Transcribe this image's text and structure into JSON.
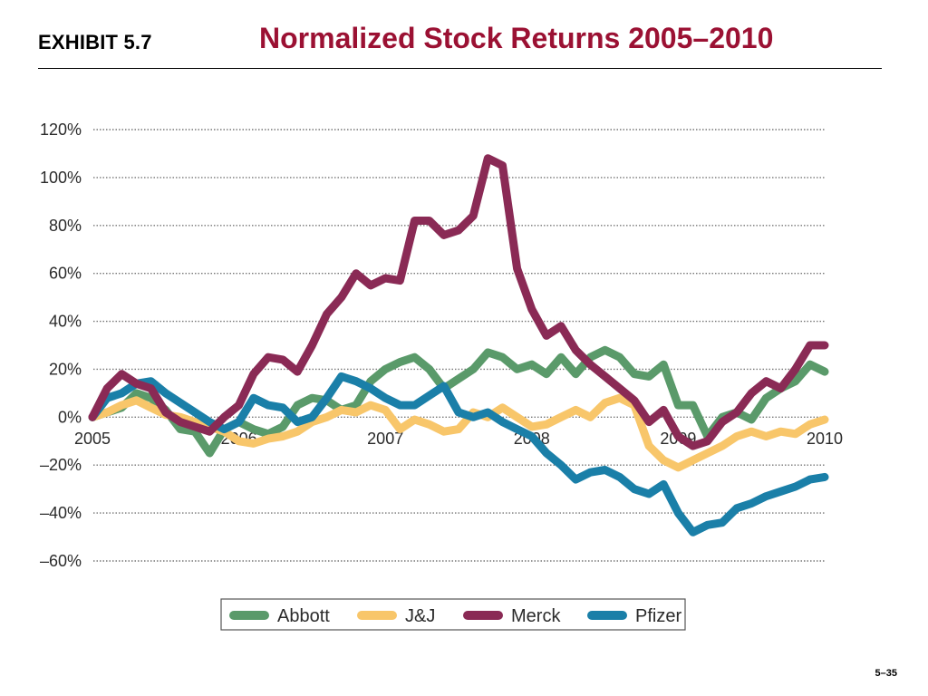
{
  "header": {
    "exhibit": "EXHIBIT 5.7",
    "title": "Normalized Stock Returns 2005–2010"
  },
  "footer": {
    "page": "5–35"
  },
  "chart_data": {
    "type": "line",
    "title": "Normalized Stock Returns 2005–2010",
    "xlabel": "",
    "ylabel": "",
    "xlim": [
      2005,
      2010
    ],
    "ylim": [
      -60,
      120
    ],
    "x_ticks": [
      "2005",
      "2006",
      "2007",
      "2008",
      "2009",
      "2010"
    ],
    "y_ticks": [
      "120%",
      "100%",
      "80%",
      "60%",
      "40%",
      "20%",
      "0%",
      "–20%",
      "–40%",
      "–60%"
    ],
    "grid": "horizontal dotted",
    "legend_position": "bottom",
    "series": [
      {
        "name": "Abbott",
        "color": "#5a9a6a",
        "x": [
          2005.0,
          2005.1,
          2005.2,
          2005.3,
          2005.4,
          2005.5,
          2005.6,
          2005.7,
          2005.8,
          2005.9,
          2006.0,
          2006.1,
          2006.2,
          2006.3,
          2006.4,
          2006.5,
          2006.6,
          2006.7,
          2006.8,
          2006.9,
          2007.0,
          2007.1,
          2007.2,
          2007.3,
          2007.4,
          2007.5,
          2007.6,
          2007.7,
          2007.8,
          2007.9,
          2008.0,
          2008.1,
          2008.2,
          2008.3,
          2008.4,
          2008.5,
          2008.6,
          2008.7,
          2008.8,
          2008.9,
          2009.0,
          2009.1,
          2009.2,
          2009.3,
          2009.4,
          2009.5,
          2009.6,
          2009.7,
          2009.8,
          2009.9,
          2010.0
        ],
        "values": [
          0,
          2,
          4,
          10,
          8,
          3,
          -5,
          -6,
          -15,
          -5,
          -2,
          -5,
          -7,
          -4,
          5,
          8,
          7,
          3,
          5,
          15,
          20,
          23,
          25,
          20,
          12,
          16,
          20,
          27,
          25,
          20,
          22,
          18,
          25,
          18,
          25,
          28,
          25,
          18,
          17,
          22,
          5,
          5,
          -8,
          0,
          2,
          -1,
          8,
          12,
          15,
          22,
          19
        ]
      },
      {
        "name": "J&J",
        "color": "#f8c66a",
        "x": [
          2005.0,
          2005.1,
          2005.2,
          2005.3,
          2005.4,
          2005.5,
          2005.6,
          2005.7,
          2005.8,
          2005.9,
          2006.0,
          2006.1,
          2006.2,
          2006.3,
          2006.4,
          2006.5,
          2006.6,
          2006.7,
          2006.8,
          2006.9,
          2007.0,
          2007.1,
          2007.2,
          2007.3,
          2007.4,
          2007.5,
          2007.6,
          2007.7,
          2007.8,
          2007.9,
          2008.0,
          2008.1,
          2008.2,
          2008.3,
          2008.4,
          2008.5,
          2008.6,
          2008.7,
          2008.8,
          2008.9,
          2009.0,
          2009.1,
          2009.2,
          2009.3,
          2009.4,
          2009.5,
          2009.6,
          2009.7,
          2009.8,
          2009.9,
          2010.0
        ],
        "values": [
          0,
          2,
          5,
          7,
          4,
          1,
          0,
          -2,
          -4,
          -6,
          -10,
          -11,
          -9,
          -8,
          -6,
          -2,
          0,
          3,
          2,
          5,
          3,
          -5,
          -1,
          -3,
          -6,
          -5,
          2,
          0,
          4,
          0,
          -4,
          -3,
          0,
          3,
          0,
          6,
          8,
          5,
          -12,
          -18,
          -21,
          -18,
          -15,
          -12,
          -8,
          -6,
          -8,
          -6,
          -7,
          -3,
          -1
        ]
      },
      {
        "name": "Merck",
        "color": "#8a2a55",
        "x": [
          2005.0,
          2005.1,
          2005.2,
          2005.3,
          2005.4,
          2005.5,
          2005.6,
          2005.7,
          2005.8,
          2005.9,
          2006.0,
          2006.1,
          2006.2,
          2006.3,
          2006.4,
          2006.5,
          2006.6,
          2006.7,
          2006.8,
          2006.9,
          2007.0,
          2007.1,
          2007.2,
          2007.3,
          2007.4,
          2007.5,
          2007.6,
          2007.7,
          2007.8,
          2007.9,
          2008.0,
          2008.1,
          2008.2,
          2008.3,
          2008.4,
          2008.5,
          2008.6,
          2008.7,
          2008.8,
          2008.9,
          2009.0,
          2009.1,
          2009.2,
          2009.3,
          2009.4,
          2009.5,
          2009.6,
          2009.7,
          2009.8,
          2009.9,
          2010.0
        ],
        "values": [
          0,
          12,
          18,
          14,
          12,
          2,
          -2,
          -4,
          -6,
          0,
          5,
          18,
          25,
          24,
          19,
          30,
          43,
          50,
          60,
          55,
          58,
          57,
          82,
          82,
          76,
          78,
          84,
          108,
          105,
          62,
          45,
          34,
          38,
          28,
          22,
          17,
          12,
          7,
          -2,
          3,
          -8,
          -12,
          -10,
          -2,
          2,
          10,
          15,
          12,
          20,
          30,
          30
        ]
      },
      {
        "name": "Pfizer",
        "color": "#1a7fa8",
        "x": [
          2005.0,
          2005.1,
          2005.2,
          2005.3,
          2005.4,
          2005.5,
          2005.6,
          2005.7,
          2005.8,
          2005.9,
          2006.0,
          2006.1,
          2006.2,
          2006.3,
          2006.4,
          2006.5,
          2006.6,
          2006.7,
          2006.8,
          2006.9,
          2007.0,
          2007.1,
          2007.2,
          2007.3,
          2007.4,
          2007.5,
          2007.6,
          2007.7,
          2007.8,
          2007.9,
          2008.0,
          2008.1,
          2008.2,
          2008.3,
          2008.4,
          2008.5,
          2008.6,
          2008.7,
          2008.8,
          2008.9,
          2009.0,
          2009.1,
          2009.2,
          2009.3,
          2009.4,
          2009.5,
          2009.6,
          2009.7,
          2009.8,
          2009.9,
          2010.0
        ],
        "values": [
          0,
          8,
          10,
          14,
          15,
          10,
          6,
          2,
          -2,
          -5,
          -2,
          8,
          5,
          4,
          -2,
          0,
          8,
          17,
          15,
          12,
          8,
          5,
          5,
          9,
          13,
          2,
          0,
          2,
          -2,
          -5,
          -8,
          -15,
          -20,
          -26,
          -23,
          -22,
          -25,
          -30,
          -32,
          -28,
          -40,
          -48,
          -45,
          -44,
          -38,
          -36,
          -33,
          -31,
          -29,
          -26,
          -25
        ]
      }
    ]
  }
}
